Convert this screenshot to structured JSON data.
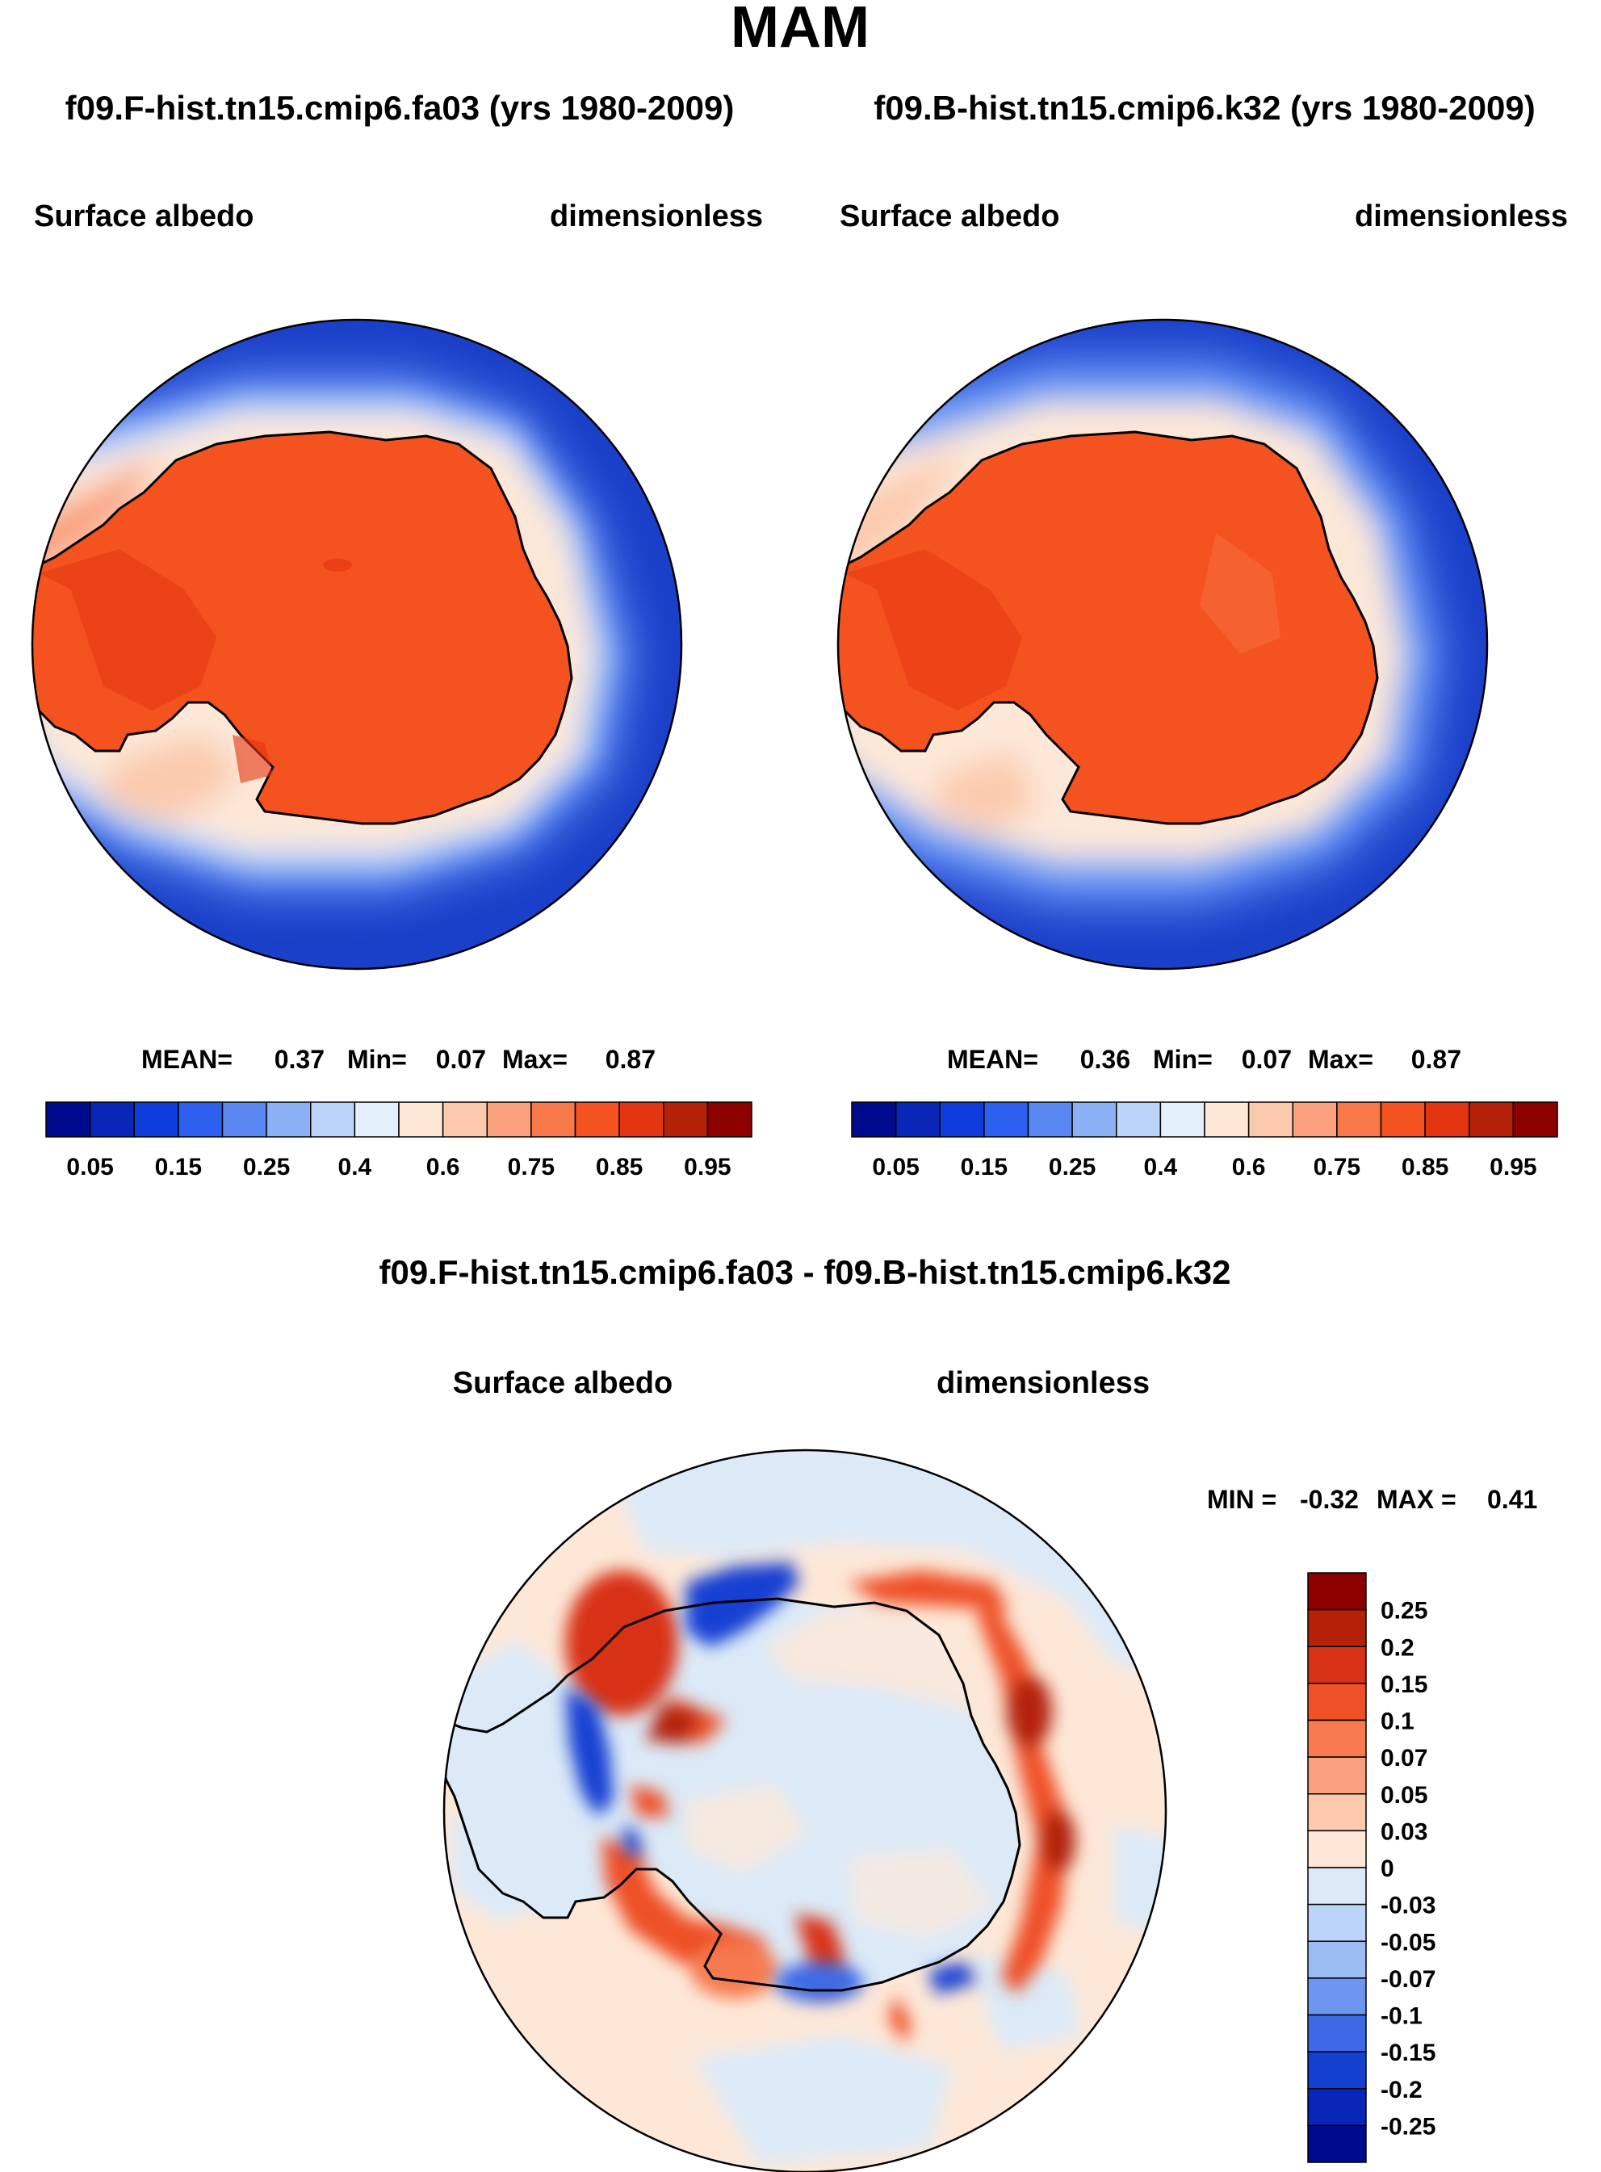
{
  "season": "MAM",
  "colors": {
    "ocean": "#1a3fc8",
    "land": "#f4521f",
    "coast": "#000000"
  },
  "chart_data": [
    {
      "type": "heatmap",
      "projection": "south-polar-stereographic",
      "case_title": "f09.F-hist.tn15.cmip6.fa03 (yrs 1980-2009)",
      "field_label": "Surface albedo",
      "units_label": "dimensionless",
      "stats": {
        "mean_label": "MEAN=",
        "mean": "0.37",
        "min_label": "Min=",
        "min": "0.07",
        "max_label": "Max=",
        "max": "0.87"
      },
      "colorbar": {
        "orientation": "horizontal",
        "levels": [
          0.05,
          0.1,
          0.15,
          0.2,
          0.25,
          0.3,
          0.4,
          0.5,
          0.6,
          0.7,
          0.75,
          0.8,
          0.85,
          0.9,
          0.95
        ],
        "tick_labels": [
          "0.05",
          "0.15",
          "0.25",
          "0.4",
          "0.6",
          "0.75",
          "0.85",
          "0.95"
        ],
        "colors": [
          "#000a8c",
          "#0a26b8",
          "#0f3cdc",
          "#2d5ff0",
          "#5a87f2",
          "#8cb0f5",
          "#bcd3fa",
          "#e4f0fc",
          "#fde8d8",
          "#fbcaad",
          "#f9a07c",
          "#f77848",
          "#f4521f",
          "#e43510",
          "#b42008",
          "#8c0000"
        ]
      }
    },
    {
      "type": "heatmap",
      "projection": "south-polar-stereographic",
      "case_title": "f09.B-hist.tn15.cmip6.k32 (yrs 1980-2009)",
      "field_label": "Surface albedo",
      "units_label": "dimensionless",
      "stats": {
        "mean_label": "MEAN=",
        "mean": "0.36",
        "min_label": "Min=",
        "min": "0.07",
        "max_label": "Max=",
        "max": "0.87"
      },
      "colorbar": {
        "orientation": "horizontal",
        "levels": [
          0.05,
          0.1,
          0.15,
          0.2,
          0.25,
          0.3,
          0.4,
          0.5,
          0.6,
          0.7,
          0.75,
          0.8,
          0.85,
          0.9,
          0.95
        ],
        "tick_labels": [
          "0.05",
          "0.15",
          "0.25",
          "0.4",
          "0.6",
          "0.75",
          "0.85",
          "0.95"
        ],
        "colors": [
          "#000a8c",
          "#0a26b8",
          "#0f3cdc",
          "#2d5ff0",
          "#5a87f2",
          "#8cb0f5",
          "#bcd3fa",
          "#e4f0fc",
          "#fde8d8",
          "#fbcaad",
          "#f9a07c",
          "#f77848",
          "#f4521f",
          "#e43510",
          "#b42008",
          "#8c0000"
        ]
      }
    },
    {
      "type": "heatmap",
      "projection": "south-polar-stereographic",
      "case_title": "f09.F-hist.tn15.cmip6.fa03 - f09.B-hist.tn15.cmip6.k32",
      "field_label": "Surface albedo",
      "units_label": "dimensionless",
      "stats": {
        "min_label": "MIN =",
        "min": "-0.32",
        "max_label": "MAX =",
        "max": "0.41"
      },
      "colorbar": {
        "orientation": "vertical",
        "levels": [
          0.25,
          0.2,
          0.15,
          0.1,
          0.07,
          0.05,
          0.03,
          0,
          -0.03,
          -0.05,
          -0.07,
          -0.1,
          -0.15,
          -0.2,
          -0.25
        ],
        "tick_labels": [
          "0.25",
          "0.2",
          "0.15",
          "0.1",
          "0.07",
          "0.05",
          "0.03",
          "0",
          "-0.03",
          "-0.05",
          "-0.07",
          "-0.1",
          "-0.15",
          "-0.2",
          "-0.25"
        ],
        "colors": [
          "#8c0000",
          "#b42008",
          "#d83214",
          "#ee5028",
          "#f77a50",
          "#f9a07c",
          "#fbcaad",
          "#fde8d8",
          "#dceaf8",
          "#bcd3fa",
          "#9cbcf4",
          "#6c96f0",
          "#3c6ae6",
          "#1440d2",
          "#0a26b8",
          "#000a8c"
        ]
      }
    }
  ]
}
